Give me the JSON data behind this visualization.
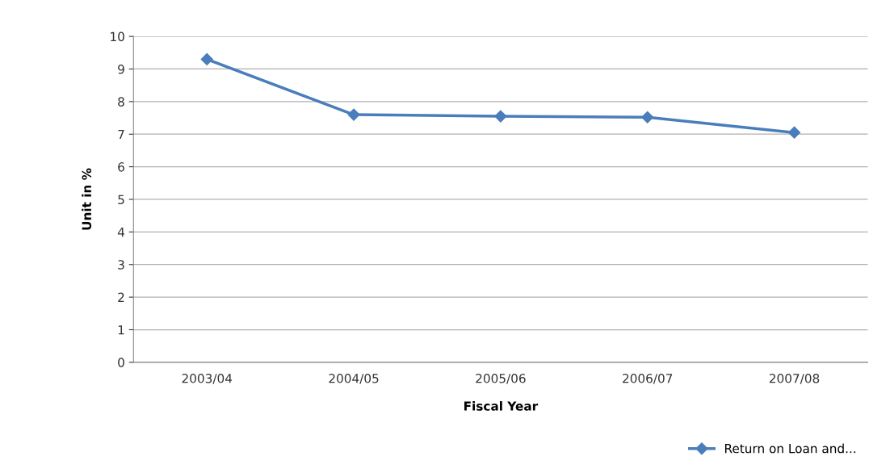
{
  "chart_data": {
    "type": "line",
    "xlabel": "Fiscal Year",
    "ylabel": "Unit in %",
    "categories": [
      "2003/04",
      "2004/05",
      "2005/06",
      "2006/07",
      "2007/08"
    ],
    "series": [
      {
        "name": "Return on Loan and...",
        "color": "#4a7ebb",
        "values": [
          9.3,
          7.6,
          7.55,
          7.52,
          7.05
        ]
      }
    ],
    "ylim": [
      0,
      10
    ],
    "yticks": [
      0,
      1,
      2,
      3,
      4,
      5,
      6,
      7,
      8,
      9,
      10
    ],
    "grid": "y",
    "legend": "bottom right",
    "marker": "diamond",
    "line_style": "solid"
  }
}
